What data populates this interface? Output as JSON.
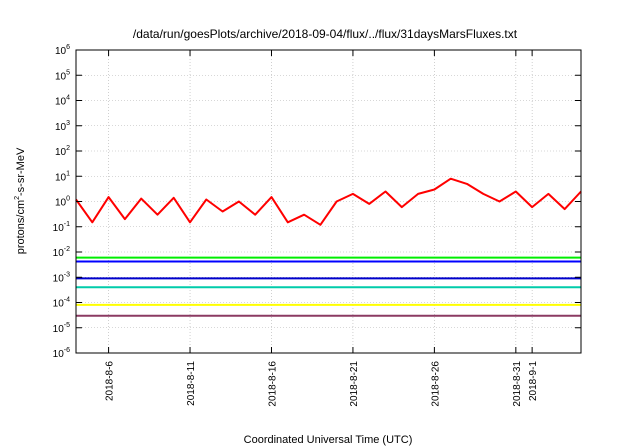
{
  "chart_data": {
    "type": "line",
    "title": "/data/run/goesPlots/archive/2018-09-04/flux/../flux/31daysMarsFluxes.txt",
    "xlabel": "Coordinated Universal Time (UTC)",
    "ylabel_parts": [
      "protons/cm",
      "2",
      "-s-sr-MeV"
    ],
    "yscale": "log",
    "ylim_exp": [
      -6,
      6
    ],
    "ytick_exps": [
      "-6",
      "-5",
      "-4",
      "-3",
      "-2",
      "-1",
      "0",
      "1",
      "2",
      "3",
      "4",
      "5",
      "6"
    ],
    "ytick_base": "10",
    "xlim": [
      "2018-08-04",
      "2018-09-04"
    ],
    "xticks": [
      {
        "date": "2018-08-06",
        "label": "2018-8-6"
      },
      {
        "date": "2018-08-11",
        "label": "2018-8-11"
      },
      {
        "date": "2018-08-16",
        "label": "2018-8-16"
      },
      {
        "date": "2018-08-21",
        "label": "2018-8-21"
      },
      {
        "date": "2018-08-26",
        "label": "2018-8-26"
      },
      {
        "date": "2018-08-31",
        "label": "2018-8-31"
      },
      {
        "date": "2018-09-01",
        "label": "2018-9-1"
      }
    ],
    "grid": true,
    "series": [
      {
        "color": "#ff0000",
        "x": [
          "2018-08-04",
          "2018-08-05",
          "2018-08-06",
          "2018-08-07",
          "2018-08-08",
          "2018-08-09",
          "2018-08-10",
          "2018-08-11",
          "2018-08-12",
          "2018-08-13",
          "2018-08-14",
          "2018-08-15",
          "2018-08-16",
          "2018-08-17",
          "2018-08-18",
          "2018-08-19",
          "2018-08-20",
          "2018-08-21",
          "2018-08-22",
          "2018-08-23",
          "2018-08-24",
          "2018-08-25",
          "2018-08-26",
          "2018-08-27",
          "2018-08-28",
          "2018-08-29",
          "2018-08-30",
          "2018-08-31",
          "2018-09-01",
          "2018-09-02",
          "2018-09-03",
          "2018-09-04"
        ],
        "y": [
          1.2,
          0.15,
          1.5,
          0.2,
          1.3,
          0.3,
          1.4,
          0.15,
          1.2,
          0.4,
          1.0,
          0.3,
          1.5,
          0.15,
          0.3,
          0.12,
          1.0,
          2.0,
          0.8,
          2.5,
          0.6,
          2.0,
          3.0,
          8.0,
          5.0,
          2.0,
          1.0,
          2.5,
          0.6,
          2.0,
          0.5,
          2.5
        ]
      },
      {
        "color": "#00ee00",
        "x": [
          "2018-08-04",
          "2018-09-04"
        ],
        "y": [
          0.006,
          0.006
        ]
      },
      {
        "color": "#0000ff",
        "x": [
          "2018-08-04",
          "2018-09-04"
        ],
        "y": [
          0.0042,
          0.0042
        ]
      },
      {
        "color": "#0000cc",
        "x": [
          "2018-08-04",
          "2018-09-04"
        ],
        "y": [
          0.0009,
          0.0009
        ]
      },
      {
        "color": "#00ccaa",
        "x": [
          "2018-08-04",
          "2018-09-04"
        ],
        "y": [
          0.0004,
          0.0004
        ]
      },
      {
        "color": "#ffff00",
        "x": [
          "2018-08-04",
          "2018-09-04"
        ],
        "y": [
          8e-05,
          8e-05
        ]
      },
      {
        "color": "#8b3a62",
        "x": [
          "2018-08-04",
          "2018-09-04"
        ],
        "y": [
          3e-05,
          3e-05
        ]
      }
    ]
  }
}
